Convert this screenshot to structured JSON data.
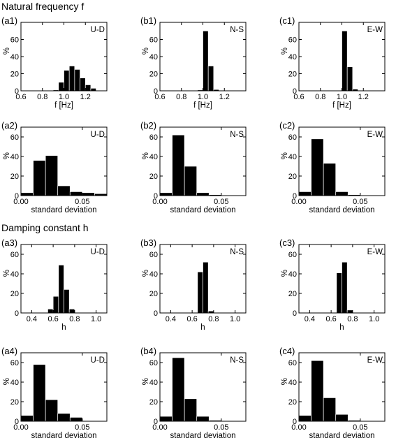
{
  "headings": {
    "section_f": "Natural frequency f",
    "section_h": "Damping constant h"
  },
  "chart_data": [
    {
      "id": "a1",
      "type": "bar",
      "title": "(a1)",
      "direction": "U-D",
      "xlabel": "f [Hz]",
      "ylabel": "%",
      "xlim": [
        0.6,
        1.4
      ],
      "ylim": [
        0,
        80
      ],
      "xticks": [
        0.6,
        0.8,
        1.0,
        1.2
      ],
      "xticklabels": [
        "0.6",
        "0.8",
        "1.0",
        "1.2"
      ],
      "yticks": [
        0,
        20,
        40,
        60
      ],
      "bin_edges": [
        0.9,
        0.95,
        1.0,
        1.05,
        1.1,
        1.15,
        1.2,
        1.25,
        1.3
      ],
      "values": [
        1,
        10,
        24,
        29,
        25,
        15,
        7,
        3
      ]
    },
    {
      "id": "b1",
      "type": "bar",
      "title": "(b1)",
      "direction": "N-S",
      "xlabel": "f [Hz]",
      "ylabel": "%",
      "xlim": [
        0.6,
        1.4
      ],
      "ylim": [
        0,
        80
      ],
      "xticks": [
        0.6,
        0.8,
        1.0,
        1.2
      ],
      "xticklabels": [
        "0.6",
        "0.8",
        "1.0",
        "1.2"
      ],
      "yticks": [
        0,
        20,
        40,
        60
      ],
      "bin_edges": [
        0.95,
        1.0,
        1.05,
        1.1,
        1.15
      ],
      "values": [
        1,
        70,
        29,
        1.5
      ]
    },
    {
      "id": "c1",
      "type": "bar",
      "title": "(c1)",
      "direction": "E-W",
      "xlabel": "f [Hz]",
      "ylabel": "%",
      "xlim": [
        0.6,
        1.4
      ],
      "ylim": [
        0,
        80
      ],
      "xticks": [
        0.6,
        0.8,
        1.0,
        1.2
      ],
      "xticklabels": [
        "0.6",
        "0.8",
        "1.0",
        "1.2"
      ],
      "yticks": [
        0,
        20,
        40,
        60
      ],
      "bin_edges": [
        1.0,
        1.05,
        1.1,
        1.15
      ],
      "values": [
        70,
        28,
        2
      ]
    },
    {
      "id": "a2",
      "type": "bar",
      "title": "(a2)",
      "direction": "U-D",
      "xlabel": "standard deviation",
      "ylabel": "%",
      "xlim": [
        0,
        0.07
      ],
      "ylim": [
        0,
        70
      ],
      "xticks": [
        0,
        0.05
      ],
      "xticklabels": [
        "0.00",
        "0.05"
      ],
      "yticks": [
        0,
        20,
        40,
        60
      ],
      "bin_edges": [
        0,
        0.01,
        0.02,
        0.03,
        0.04,
        0.05,
        0.06,
        0.07
      ],
      "values": [
        3,
        36,
        41,
        10,
        4,
        3,
        2
      ]
    },
    {
      "id": "b2",
      "type": "bar",
      "title": "(b2)",
      "direction": "N-S",
      "xlabel": "standard deviation",
      "ylabel": "%",
      "xlim": [
        0,
        0.07
      ],
      "ylim": [
        0,
        70
      ],
      "xticks": [
        0,
        0.05
      ],
      "xticklabels": [
        "0.00",
        "0.05"
      ],
      "yticks": [
        0,
        20,
        40,
        60
      ],
      "bin_edges": [
        0,
        0.01,
        0.02,
        0.03,
        0.04,
        0.05
      ],
      "values": [
        3,
        62,
        30,
        3,
        1
      ]
    },
    {
      "id": "c2",
      "type": "bar",
      "title": "(c2)",
      "direction": "E-W",
      "xlabel": "standard deviation",
      "ylabel": "%",
      "xlim": [
        0,
        0.07
      ],
      "ylim": [
        0,
        70
      ],
      "xticks": [
        0,
        0.05
      ],
      "xticklabels": [
        "0.00",
        "0.05"
      ],
      "yticks": [
        0,
        20,
        40,
        60
      ],
      "bin_edges": [
        0,
        0.01,
        0.02,
        0.03,
        0.04,
        0.05
      ],
      "values": [
        4,
        58,
        33,
        4,
        1
      ]
    },
    {
      "id": "a3",
      "type": "bar",
      "title": "(a3)",
      "direction": "U-D",
      "xlabel": "h",
      "ylabel": "%",
      "xlim": [
        0.3,
        1.1
      ],
      "ylim": [
        0,
        70
      ],
      "xticks": [
        0.4,
        0.6,
        0.8,
        1.0
      ],
      "xticklabels": [
        "0.4",
        "0.6",
        "0.8",
        "1.0"
      ],
      "yticks": [
        0,
        20,
        40,
        60
      ],
      "bin_edges": [
        0.55,
        0.6,
        0.65,
        0.7,
        0.75,
        0.8
      ],
      "values": [
        4,
        17,
        49,
        24,
        4
      ]
    },
    {
      "id": "b3",
      "type": "bar",
      "title": "(b3)",
      "direction": "N-S",
      "xlabel": "h",
      "ylabel": "%",
      "xlim": [
        0.3,
        1.1
      ],
      "ylim": [
        0,
        70
      ],
      "xticks": [
        0.4,
        0.6,
        0.8,
        1.0
      ],
      "xticklabels": [
        "0.4",
        "0.6",
        "0.8",
        "1.0"
      ],
      "yticks": [
        0,
        20,
        40,
        60
      ],
      "bin_edges": [
        0.65,
        0.7,
        0.75,
        0.8
      ],
      "values": [
        42,
        52,
        2
      ]
    },
    {
      "id": "c3",
      "type": "bar",
      "title": "(c3)",
      "direction": "E-W",
      "xlabel": "h",
      "ylabel": "%",
      "xlim": [
        0.3,
        1.1
      ],
      "ylim": [
        0,
        70
      ],
      "xticks": [
        0.4,
        0.6,
        0.8,
        1.0
      ],
      "xticklabels": [
        "0.4",
        "0.6",
        "0.8",
        "1.0"
      ],
      "yticks": [
        0,
        20,
        40,
        60
      ],
      "bin_edges": [
        0.65,
        0.7,
        0.75,
        0.8
      ],
      "values": [
        41,
        52,
        3
      ]
    },
    {
      "id": "a4",
      "type": "bar",
      "title": "(a4)",
      "direction": "U-D",
      "xlabel": "standard deviation",
      "ylabel": "%",
      "xlim": [
        0,
        0.07
      ],
      "ylim": [
        0,
        70
      ],
      "xticks": [
        0,
        0.05
      ],
      "xticklabels": [
        "0.00",
        "0.05"
      ],
      "yticks": [
        0,
        20,
        40,
        60
      ],
      "bin_edges": [
        0,
        0.01,
        0.02,
        0.03,
        0.04,
        0.05
      ],
      "values": [
        6,
        58,
        22,
        8,
        4
      ]
    },
    {
      "id": "b4",
      "type": "bar",
      "title": "(b4)",
      "direction": "N-S",
      "xlabel": "standard deviation",
      "ylabel": "%",
      "xlim": [
        0,
        0.07
      ],
      "ylim": [
        0,
        70
      ],
      "xticks": [
        0,
        0.05
      ],
      "xticklabels": [
        "0.00",
        "0.05"
      ],
      "yticks": [
        0,
        20,
        40,
        60
      ],
      "bin_edges": [
        0,
        0.01,
        0.02,
        0.03,
        0.04,
        0.05
      ],
      "values": [
        5,
        65,
        23,
        5,
        1
      ]
    },
    {
      "id": "c4",
      "type": "bar",
      "title": "(c4)",
      "direction": "E-W",
      "xlabel": "standard deviation",
      "ylabel": "%",
      "xlim": [
        0,
        0.07
      ],
      "ylim": [
        0,
        70
      ],
      "xticks": [
        0,
        0.05
      ],
      "xticklabels": [
        "0.00",
        "0.05"
      ],
      "yticks": [
        0,
        20,
        40,
        60
      ],
      "bin_edges": [
        0,
        0.01,
        0.02,
        0.03,
        0.04,
        0.05
      ],
      "values": [
        6,
        62,
        24,
        7,
        1
      ]
    }
  ]
}
